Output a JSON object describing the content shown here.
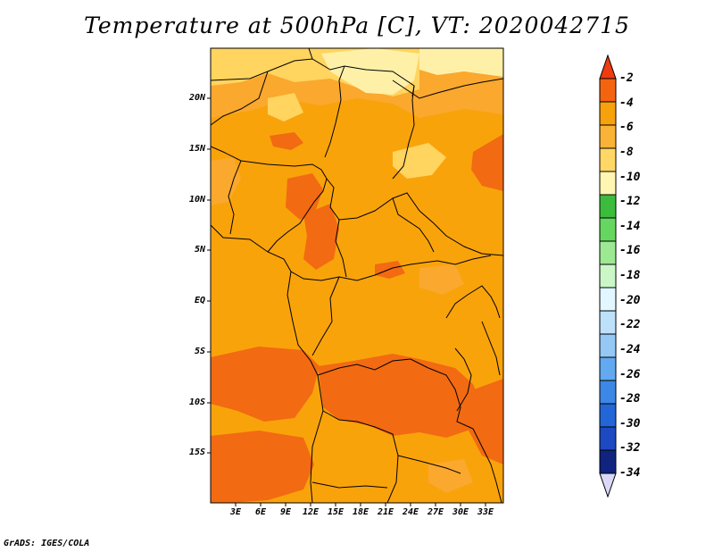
{
  "title": "Temperature at 500hPa [C], VT: 2020042715",
  "footer": "GrADS: IGES/COLA",
  "map": {
    "lon_range": [
      0,
      35
    ],
    "lat_range": [
      -20,
      25
    ],
    "lat_ticks": [
      "20N",
      "15N",
      "10N",
      "5N",
      "EQ",
      "5S",
      "10S",
      "15S"
    ],
    "lon_ticks": [
      "3E",
      "6E",
      "9E",
      "12E",
      "15E",
      "18E",
      "21E",
      "24E",
      "27E",
      "30E",
      "33E"
    ],
    "field_classes": [
      {
        "level": "-8 to -6",
        "color": "#faa82e"
      },
      {
        "level": "-6 to -4",
        "color": "#f9a30b"
      },
      {
        "level": "-4 to -2",
        "color": "#f26a12"
      },
      {
        "level": "-10 to -8",
        "color": "#ffd45f"
      },
      {
        "level": "-12 to -10",
        "color": "#fff0a8"
      }
    ]
  },
  "colorbar": {
    "labels": [
      "-2",
      "-4",
      "-6",
      "-8",
      "-10",
      "-12",
      "-14",
      "-16",
      "-18",
      "-20",
      "-22",
      "-24",
      "-26",
      "-28",
      "-30",
      "-32",
      "-34"
    ],
    "colors": [
      "#f03a0f",
      "#f46410",
      "#f7a10d",
      "#fab237",
      "#ffd766",
      "#fff6b2",
      "#3cbc3d",
      "#65d760",
      "#9de893",
      "#cbf7c7",
      "#e2f7ff",
      "#bde0fb",
      "#95c8f5",
      "#62a9ef",
      "#3d88e6",
      "#2266d7",
      "#1d4ac3",
      "#10237f",
      "#d9d9f7"
    ]
  }
}
